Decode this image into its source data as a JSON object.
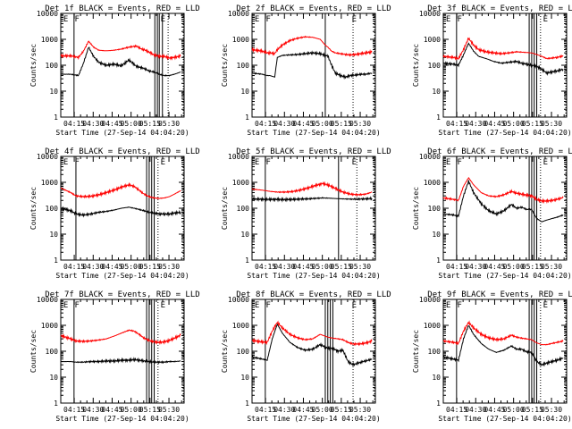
{
  "figure": {
    "background": "#ffffff",
    "events_color": "#000000",
    "lld_color": "#ff0000"
  },
  "common": {
    "xlabel": "Start Time (27-Sep-14 04:04:20)",
    "ylabel": "Counts/sec",
    "x_ticks": [
      "04:15",
      "04:30",
      "04:45",
      "05:00",
      "05:15",
      "05:30"
    ],
    "y_ticks": [
      "1",
      "10",
      "100",
      "1000",
      "10000"
    ],
    "legend_markers": [
      "E",
      "F",
      "E"
    ]
  },
  "chart_data": [
    {
      "type": "line",
      "title": "Det 1f BLACK = Events, RED = LLD",
      "xlabel": "Start Time (27-Sep-14 04:04:20)",
      "ylabel": "Counts/sec",
      "xlim": [
        "04:04:20",
        "05:42:00"
      ],
      "ylim": [
        1,
        10000
      ],
      "yscale": "log",
      "x_minutes": [
        0,
        8,
        14,
        18,
        22,
        26,
        30,
        36,
        42,
        48,
        54,
        60,
        64,
        66,
        70,
        74,
        78,
        82,
        86,
        90,
        95
      ],
      "series": [
        {
          "name": "Events",
          "color": "#000000",
          "values": [
            45,
            45,
            40,
            120,
            500,
            220,
            130,
            100,
            110,
            95,
            160,
            90,
            80,
            75,
            60,
            55,
            45,
            40,
            40,
            45,
            55
          ]
        },
        {
          "name": "LLD",
          "color": "#ff0000",
          "values": [
            230,
            230,
            200,
            350,
            850,
            500,
            380,
            360,
            380,
            420,
            500,
            550,
            420,
            400,
            320,
            250,
            220,
            220,
            190,
            200,
            230
          ]
        }
      ],
      "vlines_solid": [
        10.5,
        74.5,
        76.5,
        78,
        80.5
      ],
      "vlines_dotted": [
        85,
        97
      ]
    },
    {
      "type": "line",
      "title": "Det 2f BLACK = Events, RED = LLD",
      "xlabel": "Start Time (27-Sep-14 04:04:20)",
      "ylabel": "Counts/sec",
      "xlim": [
        "04:04:20",
        "05:42:00"
      ],
      "ylim": [
        1,
        10000
      ],
      "yscale": "log",
      "x_minutes": [
        0,
        8,
        12,
        14,
        18,
        20,
        24,
        30,
        36,
        42,
        48,
        54,
        58,
        60,
        63,
        66,
        70,
        74,
        78,
        82,
        86,
        90,
        95
      ],
      "series": [
        {
          "name": "Events",
          "color": "#000000",
          "values": [
            50,
            45,
            40,
            40,
            35,
            200,
            240,
            250,
            260,
            280,
            300,
            280,
            240,
            230,
            100,
            50,
            40,
            35,
            40,
            42,
            45,
            45,
            50
          ]
        },
        {
          "name": "LLD",
          "color": "#ff0000",
          "values": [
            400,
            350,
            300,
            300,
            280,
            400,
            600,
            900,
            1100,
            1250,
            1200,
            1000,
            600,
            500,
            350,
            300,
            280,
            260,
            250,
            260,
            280,
            300,
            330
          ]
        }
      ],
      "vlines_solid": [
        10.5,
        58
      ],
      "vlines_dotted": [
        80,
        97
      ]
    },
    {
      "type": "line",
      "title": "Det 3f BLACK = Events, RED = LLD",
      "xlabel": "Start Time (27-Sep-14 04:04:20)",
      "ylabel": "Counts/sec",
      "xlim": [
        "04:04:20",
        "05:42:00"
      ],
      "ylim": [
        1,
        10000
      ],
      "yscale": "log",
      "x_minutes": [
        0,
        8,
        12,
        16,
        20,
        24,
        28,
        34,
        40,
        46,
        52,
        58,
        62,
        66,
        70,
        74,
        78,
        82,
        86,
        90,
        95
      ],
      "series": [
        {
          "name": "Events",
          "color": "#000000",
          "values": [
            120,
            110,
            100,
            250,
            700,
            350,
            220,
            180,
            140,
            120,
            130,
            140,
            120,
            110,
            100,
            90,
            70,
            50,
            55,
            60,
            70
          ]
        },
        {
          "name": "LLD",
          "color": "#ff0000",
          "values": [
            220,
            200,
            180,
            400,
            1100,
            600,
            400,
            330,
            300,
            280,
            300,
            330,
            320,
            310,
            300,
            260,
            220,
            180,
            190,
            200,
            230
          ]
        }
      ],
      "vlines_solid": [
        10.5,
        68,
        70,
        72,
        74
      ],
      "vlines_dotted": [
        77,
        97
      ]
    },
    {
      "type": "line",
      "title": "Det 4f BLACK = Events, RED = LLD",
      "xlabel": "Start Time (27-Sep-14 04:04:20)",
      "ylabel": "Counts/sec",
      "xlim": [
        "04:04:20",
        "05:42:00"
      ],
      "ylim": [
        1,
        10000
      ],
      "yscale": "log",
      "x_minutes": [
        0,
        8,
        12,
        18,
        24,
        30,
        36,
        42,
        48,
        54,
        58,
        62,
        66,
        70,
        74,
        78,
        82,
        86,
        90,
        95
      ],
      "series": [
        {
          "name": "Events",
          "color": "#000000",
          "values": [
            100,
            80,
            60,
            55,
            60,
            70,
            75,
            85,
            100,
            110,
            100,
            90,
            80,
            70,
            65,
            60,
            60,
            60,
            65,
            70
          ]
        },
        {
          "name": "LLD",
          "color": "#ff0000",
          "values": [
            600,
            400,
            300,
            280,
            290,
            330,
            400,
            500,
            650,
            800,
            700,
            500,
            350,
            280,
            250,
            240,
            250,
            280,
            350,
            480
          ]
        }
      ],
      "vlines_solid": [
        12,
        68,
        70,
        72,
        74
      ],
      "vlines_dotted": [
        77,
        97
      ]
    },
    {
      "type": "line",
      "title": "Det 5f BLACK = Events, RED = LLD",
      "xlabel": "Start Time (27-Sep-14 04:04:20)",
      "ylabel": "Counts/sec",
      "xlim": [
        "04:04:20",
        "05:42:00"
      ],
      "ylim": [
        1,
        10000
      ],
      "yscale": "log",
      "x_minutes": [
        0,
        8,
        14,
        20,
        26,
        32,
        38,
        44,
        50,
        56,
        60,
        64,
        68,
        72,
        78,
        84,
        90,
        95
      ],
      "series": [
        {
          "name": "Events",
          "color": "#000000",
          "values": [
            230,
            220,
            220,
            220,
            215,
            220,
            225,
            230,
            240,
            250,
            245,
            240,
            235,
            230,
            225,
            225,
            230,
            240
          ]
        },
        {
          "name": "LLD",
          "color": "#ff0000",
          "values": [
            550,
            500,
            450,
            420,
            420,
            440,
            500,
            600,
            750,
            900,
            800,
            650,
            520,
            420,
            350,
            330,
            350,
            420
          ]
        }
      ],
      "vlines_solid": [
        10.5,
        68.5
      ],
      "vlines_dotted": [
        83,
        97
      ]
    },
    {
      "type": "line",
      "title": "Det 6f BLACK = Events, RED = LLD",
      "xlabel": "Start Time (27-Sep-14 04:04:20)",
      "ylabel": "Counts/sec",
      "xlim": [
        "04:04:20",
        "05:42:00"
      ],
      "ylim": [
        1,
        10000
      ],
      "yscale": "log",
      "x_minutes": [
        0,
        8,
        12,
        16,
        20,
        24,
        30,
        36,
        42,
        48,
        54,
        58,
        62,
        66,
        70,
        74,
        78,
        82,
        86,
        90,
        95
      ],
      "series": [
        {
          "name": "Events",
          "color": "#000000",
          "values": [
            60,
            55,
            50,
            300,
            1100,
            400,
            150,
            80,
            60,
            80,
            140,
            100,
            110,
            90,
            90,
            40,
            30,
            35,
            40,
            45,
            55
          ]
        },
        {
          "name": "LLD",
          "color": "#ff0000",
          "values": [
            250,
            220,
            200,
            700,
            1500,
            800,
            400,
            300,
            280,
            330,
            450,
            380,
            350,
            320,
            300,
            220,
            190,
            190,
            200,
            220,
            260
          ]
        }
      ],
      "vlines_solid": [
        10.5,
        68,
        70,
        72,
        74
      ],
      "vlines_dotted": [
        77,
        97
      ]
    },
    {
      "type": "line",
      "title": "Det 7f BLACK = Events, RED = LLD",
      "xlabel": "Start Time (27-Sep-14 04:04:20)",
      "ylabel": "Counts/sec",
      "xlim": [
        "04:04:20",
        "05:42:00"
      ],
      "ylim": [
        1,
        10000
      ],
      "yscale": "log",
      "x_minutes": [
        0,
        8,
        12,
        18,
        24,
        30,
        36,
        42,
        48,
        54,
        58,
        62,
        66,
        70,
        74,
        78,
        82,
        86,
        90,
        95
      ],
      "series": [
        {
          "name": "Events",
          "color": "#000000",
          "values": [
            40,
            40,
            38,
            38,
            40,
            40,
            42,
            42,
            45,
            45,
            48,
            45,
            42,
            40,
            38,
            38,
            38,
            40,
            40,
            42
          ]
        },
        {
          "name": "LLD",
          "color": "#ff0000",
          "values": [
            400,
            300,
            250,
            240,
            250,
            270,
            300,
            380,
            500,
            650,
            600,
            450,
            320,
            260,
            230,
            220,
            230,
            260,
            320,
            420
          ]
        }
      ],
      "vlines_solid": [
        10.5,
        68,
        70,
        72,
        74
      ],
      "vlines_dotted": [
        77,
        97
      ]
    },
    {
      "type": "line",
      "title": "Det 8f BLACK = Events, RED = LLD",
      "xlabel": "Start Time (27-Sep-14 04:04:20)",
      "ylabel": "Counts/sec",
      "xlim": [
        "04:04:20",
        "05:42:00"
      ],
      "ylim": [
        1,
        10000
      ],
      "yscale": "log",
      "x_minutes": [
        0,
        8,
        12,
        16,
        20,
        24,
        30,
        36,
        42,
        48,
        54,
        60,
        64,
        68,
        72,
        76,
        80,
        84,
        88,
        92,
        95
      ],
      "series": [
        {
          "name": "Events",
          "color": "#000000",
          "values": [
            60,
            50,
            45,
            300,
            1100,
            500,
            220,
            140,
            110,
            120,
            180,
            130,
            130,
            100,
            110,
            40,
            30,
            35,
            40,
            45,
            50
          ]
        },
        {
          "name": "LLD",
          "color": "#ff0000",
          "values": [
            260,
            230,
            220,
            600,
            1300,
            800,
            450,
            330,
            280,
            300,
            450,
            350,
            320,
            300,
            280,
            220,
            190,
            190,
            200,
            220,
            250
          ]
        }
      ],
      "vlines_solid": [
        10.5,
        58,
        60,
        62,
        64
      ],
      "vlines_dotted": [
        80,
        97
      ]
    },
    {
      "type": "line",
      "title": "Det 9f BLACK = Events, RED = LLD",
      "xlabel": "Start Time (27-Sep-14 04:04:20)",
      "ylabel": "Counts/sec",
      "xlim": [
        "04:04:20",
        "05:42:00"
      ],
      "ylim": [
        1,
        10000
      ],
      "yscale": "log",
      "x_minutes": [
        0,
        8,
        12,
        16,
        20,
        24,
        30,
        36,
        42,
        48,
        54,
        58,
        62,
        66,
        70,
        74,
        78,
        82,
        86,
        90,
        95
      ],
      "series": [
        {
          "name": "Events",
          "color": "#000000",
          "values": [
            60,
            50,
            45,
            300,
            1000,
            450,
            200,
            120,
            90,
            110,
            160,
            120,
            120,
            95,
            90,
            40,
            30,
            35,
            40,
            45,
            55
          ]
        },
        {
          "name": "LLD",
          "color": "#ff0000",
          "values": [
            250,
            220,
            200,
            600,
            1300,
            800,
            450,
            330,
            280,
            300,
            420,
            350,
            320,
            300,
            280,
            210,
            180,
            180,
            200,
            220,
            250
          ]
        }
      ],
      "vlines_solid": [
        10.5,
        68,
        70,
        72,
        74
      ],
      "vlines_dotted": [
        77,
        97
      ]
    }
  ]
}
